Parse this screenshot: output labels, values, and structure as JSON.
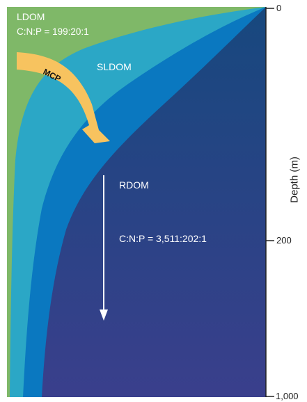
{
  "labels": {
    "ldom": "LDOM",
    "ldom_ratio": "C:N:P = 199:20:1",
    "sldom": "SLDOM",
    "mcp": "MCP",
    "rdom": "RDOM",
    "rdom_ratio": "C:N:P = 3,511:202:1"
  },
  "axis": {
    "title": "Depth (m)",
    "ticks": [
      "0",
      "200",
      "1,000"
    ]
  },
  "colors": {
    "ldom": "#7fb868",
    "sldom_light": "#2ba7c6",
    "sldom_mid": "#0a78c0",
    "rdom_top": "#17487e",
    "rdom_bottom": "#3a3f8c",
    "mcp_arrow": "#f7c35f",
    "down_arrow": "#ffffff"
  }
}
